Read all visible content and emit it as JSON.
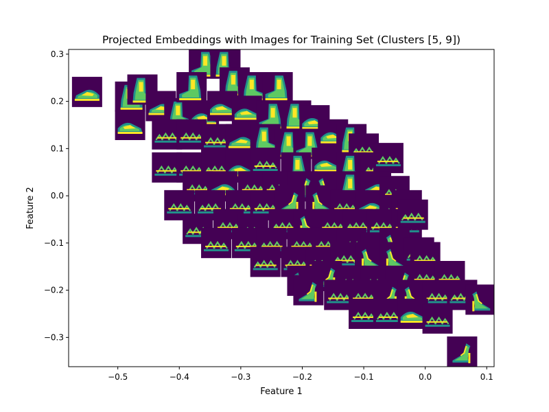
{
  "chart_data": {
    "type": "scatter",
    "title": "Projected Embeddings with Images for Training Set (Clusters [5, 9])",
    "xlabel": "Feature 1",
    "ylabel": "Feature 2",
    "xlim": [
      -0.58,
      0.112
    ],
    "ylim": [
      -0.362,
      0.31
    ],
    "grid": false,
    "marker_style": "image thumbnails (viridis colormap)",
    "colors": {
      "background": "#440154",
      "mid": "#21918c",
      "high": "#5ec962",
      "peak": "#fde725"
    },
    "xticks": [
      {
        "value": -0.5,
        "label": "−0.5"
      },
      {
        "value": -0.4,
        "label": "−0.4"
      },
      {
        "value": -0.3,
        "label": "−0.3"
      },
      {
        "value": -0.2,
        "label": "−0.2"
      },
      {
        "value": -0.1,
        "label": "−0.1"
      },
      {
        "value": 0.0,
        "label": "0.0"
      },
      {
        "value": 0.1,
        "label": "0.1"
      }
    ],
    "yticks": [
      {
        "value": 0.3,
        "label": "0.3"
      },
      {
        "value": 0.2,
        "label": "0.2"
      },
      {
        "value": 0.1,
        "label": "0.1"
      },
      {
        "value": 0.0,
        "label": "0.0"
      },
      {
        "value": -0.1,
        "label": "−0.1"
      },
      {
        "value": -0.2,
        "label": "−0.2"
      },
      {
        "value": -0.3,
        "label": "−0.3"
      }
    ],
    "points": [
      {
        "x": -0.55,
        "y": 0.22,
        "kind": "sneaker"
      },
      {
        "x": -0.48,
        "y": 0.21,
        "kind": "boot"
      },
      {
        "x": -0.46,
        "y": 0.225,
        "kind": "boot"
      },
      {
        "x": -0.36,
        "y": 0.28,
        "kind": "boot"
      },
      {
        "x": -0.325,
        "y": 0.28,
        "kind": "boot"
      },
      {
        "x": -0.48,
        "y": 0.15,
        "kind": "sneaker"
      },
      {
        "x": -0.43,
        "y": 0.19,
        "kind": "sneaker"
      },
      {
        "x": -0.4,
        "y": 0.175,
        "kind": "boot"
      },
      {
        "x": -0.36,
        "y": 0.17,
        "kind": "sneaker"
      },
      {
        "x": -0.38,
        "y": 0.23,
        "kind": "boot"
      },
      {
        "x": -0.31,
        "y": 0.24,
        "kind": "boot"
      },
      {
        "x": -0.28,
        "y": 0.23,
        "kind": "boot"
      },
      {
        "x": -0.24,
        "y": 0.23,
        "kind": "boot"
      },
      {
        "x": -0.33,
        "y": 0.19,
        "kind": "sneaker"
      },
      {
        "x": -0.29,
        "y": 0.18,
        "kind": "sneaker"
      },
      {
        "x": -0.25,
        "y": 0.17,
        "kind": "boot"
      },
      {
        "x": -0.21,
        "y": 0.17,
        "kind": "boot"
      },
      {
        "x": -0.18,
        "y": 0.16,
        "kind": "sneaker"
      },
      {
        "x": -0.42,
        "y": 0.13,
        "kind": "sandal"
      },
      {
        "x": -0.38,
        "y": 0.13,
        "kind": "sandal"
      },
      {
        "x": -0.34,
        "y": 0.12,
        "kind": "sandal"
      },
      {
        "x": -0.3,
        "y": 0.12,
        "kind": "sneaker"
      },
      {
        "x": -0.26,
        "y": 0.12,
        "kind": "boot"
      },
      {
        "x": -0.22,
        "y": 0.11,
        "kind": "boot"
      },
      {
        "x": -0.19,
        "y": 0.11,
        "kind": "boot"
      },
      {
        "x": -0.15,
        "y": 0.13,
        "kind": "sneaker"
      },
      {
        "x": -0.12,
        "y": 0.12,
        "kind": "boot"
      },
      {
        "x": -0.1,
        "y": 0.1,
        "kind": "sandal"
      },
      {
        "x": -0.42,
        "y": 0.06,
        "kind": "sandal"
      },
      {
        "x": -0.38,
        "y": 0.06,
        "kind": "sandal"
      },
      {
        "x": -0.34,
        "y": 0.06,
        "kind": "sandal"
      },
      {
        "x": -0.3,
        "y": 0.06,
        "kind": "sneaker"
      },
      {
        "x": -0.26,
        "y": 0.07,
        "kind": "sandal"
      },
      {
        "x": -0.21,
        "y": 0.06,
        "kind": "boot"
      },
      {
        "x": -0.16,
        "y": 0.07,
        "kind": "sneaker"
      },
      {
        "x": -0.12,
        "y": 0.06,
        "kind": "boot"
      },
      {
        "x": -0.08,
        "y": 0.06,
        "kind": "sandal"
      },
      {
        "x": -0.06,
        "y": 0.08,
        "kind": "sandal"
      },
      {
        "x": -0.37,
        "y": 0.02,
        "kind": "sandal"
      },
      {
        "x": -0.33,
        "y": 0.02,
        "kind": "sneaker"
      },
      {
        "x": -0.28,
        "y": 0.02,
        "kind": "sandal"
      },
      {
        "x": -0.24,
        "y": 0.02,
        "kind": "sandal"
      },
      {
        "x": -0.2,
        "y": 0.02,
        "kind": "heel"
      },
      {
        "x": -0.16,
        "y": 0.02,
        "kind": "heel"
      },
      {
        "x": -0.12,
        "y": 0.02,
        "kind": "boot"
      },
      {
        "x": -0.08,
        "y": 0.02,
        "kind": "sneaker"
      },
      {
        "x": -0.05,
        "y": 0.01,
        "kind": "sandal"
      },
      {
        "x": -0.4,
        "y": -0.02,
        "kind": "sandal"
      },
      {
        "x": -0.35,
        "y": -0.02,
        "kind": "sandal"
      },
      {
        "x": -0.3,
        "y": -0.02,
        "kind": "sandal"
      },
      {
        "x": -0.26,
        "y": -0.02,
        "kind": "sandal"
      },
      {
        "x": -0.22,
        "y": -0.01,
        "kind": "heel"
      },
      {
        "x": -0.17,
        "y": -0.01,
        "kind": "heel"
      },
      {
        "x": -0.13,
        "y": -0.02,
        "kind": "sandal"
      },
      {
        "x": -0.09,
        "y": -0.02,
        "kind": "sneaker"
      },
      {
        "x": -0.05,
        "y": -0.03,
        "kind": "sandal"
      },
      {
        "x": -0.03,
        "y": -0.02,
        "kind": "sandal"
      },
      {
        "x": -0.37,
        "y": -0.07,
        "kind": "sandal"
      },
      {
        "x": -0.32,
        "y": -0.06,
        "kind": "sandal"
      },
      {
        "x": -0.28,
        "y": -0.07,
        "kind": "sandal"
      },
      {
        "x": -0.23,
        "y": -0.06,
        "kind": "sandal"
      },
      {
        "x": -0.19,
        "y": -0.06,
        "kind": "heel"
      },
      {
        "x": -0.15,
        "y": -0.06,
        "kind": "sandal"
      },
      {
        "x": -0.11,
        "y": -0.06,
        "kind": "sandal"
      },
      {
        "x": -0.07,
        "y": -0.06,
        "kind": "sandal"
      },
      {
        "x": -0.03,
        "y": -0.06,
        "kind": "sandal"
      },
      {
        "x": -0.02,
        "y": -0.04,
        "kind": "sandal"
      },
      {
        "x": -0.34,
        "y": -0.1,
        "kind": "sandal"
      },
      {
        "x": -0.29,
        "y": -0.1,
        "kind": "sandal"
      },
      {
        "x": -0.25,
        "y": -0.1,
        "kind": "sandal"
      },
      {
        "x": -0.2,
        "y": -0.1,
        "kind": "sandal"
      },
      {
        "x": -0.16,
        "y": -0.1,
        "kind": "sandal"
      },
      {
        "x": -0.12,
        "y": -0.1,
        "kind": "sandal"
      },
      {
        "x": -0.08,
        "y": -0.11,
        "kind": "sandal"
      },
      {
        "x": -0.05,
        "y": -0.1,
        "kind": "heel"
      },
      {
        "x": -0.26,
        "y": -0.14,
        "kind": "sandal"
      },
      {
        "x": -0.21,
        "y": -0.14,
        "kind": "sandal"
      },
      {
        "x": -0.17,
        "y": -0.14,
        "kind": "sandal"
      },
      {
        "x": -0.13,
        "y": -0.13,
        "kind": "sandal"
      },
      {
        "x": -0.09,
        "y": -0.13,
        "kind": "heel"
      },
      {
        "x": -0.05,
        "y": -0.13,
        "kind": "heel"
      },
      {
        "x": -0.01,
        "y": -0.12,
        "kind": "sandal"
      },
      {
        "x": 0.0,
        "y": -0.13,
        "kind": "sandal"
      },
      {
        "x": -0.2,
        "y": -0.18,
        "kind": "heel"
      },
      {
        "x": -0.16,
        "y": -0.17,
        "kind": "heel"
      },
      {
        "x": -0.12,
        "y": -0.18,
        "kind": "sandal"
      },
      {
        "x": -0.08,
        "y": -0.18,
        "kind": "sandal"
      },
      {
        "x": -0.04,
        "y": -0.18,
        "kind": "heel"
      },
      {
        "x": 0.0,
        "y": -0.17,
        "kind": "sandal"
      },
      {
        "x": 0.04,
        "y": -0.17,
        "kind": "sandal"
      },
      {
        "x": -0.19,
        "y": -0.2,
        "kind": "heel"
      },
      {
        "x": -0.14,
        "y": -0.21,
        "kind": "sandal"
      },
      {
        "x": -0.1,
        "y": -0.21,
        "kind": "sandal"
      },
      {
        "x": -0.06,
        "y": -0.21,
        "kind": "heel"
      },
      {
        "x": -0.02,
        "y": -0.21,
        "kind": "heel"
      },
      {
        "x": 0.02,
        "y": -0.21,
        "kind": "sandal"
      },
      {
        "x": 0.06,
        "y": -0.21,
        "kind": "sandal"
      },
      {
        "x": 0.09,
        "y": -0.22,
        "kind": "heel"
      },
      {
        "x": -0.1,
        "y": -0.25,
        "kind": "sandal"
      },
      {
        "x": -0.06,
        "y": -0.25,
        "kind": "sandal"
      },
      {
        "x": -0.02,
        "y": -0.25,
        "kind": "sneaker"
      },
      {
        "x": 0.02,
        "y": -0.26,
        "kind": "sandal"
      },
      {
        "x": 0.06,
        "y": -0.33,
        "kind": "heel"
      }
    ]
  }
}
